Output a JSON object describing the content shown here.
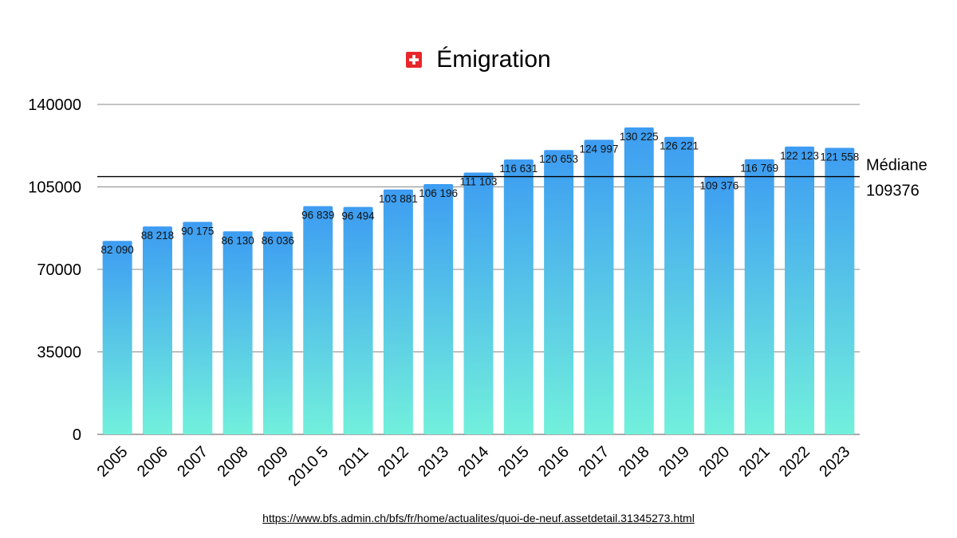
{
  "chart_data": {
    "type": "bar",
    "title": "Émigration",
    "categories": [
      "2005",
      "2006",
      "2007",
      "2008",
      "2009",
      "2010 5",
      "2011",
      "2012",
      "2013",
      "2014",
      "2015",
      "2016",
      "2017",
      "2018",
      "2019",
      "2020",
      "2021",
      "2022",
      "2023"
    ],
    "values": [
      82090,
      88218,
      90175,
      86130,
      86036,
      96839,
      96494,
      103881,
      106196,
      111103,
      116631,
      120653,
      124997,
      130225,
      126221,
      109376,
      116769,
      122123,
      121558
    ],
    "value_labels": [
      "82 090",
      "88 218",
      "90 175",
      "86 130",
      "86 036",
      "96 839",
      "96 494",
      "103 881",
      "106 196",
      "111 103",
      "116 631",
      "120 653",
      "124 997",
      "130 225",
      "126 221",
      "109 376",
      "116 769",
      "122 123",
      "121 558"
    ],
    "ylim": [
      0,
      140000
    ],
    "yticks": [
      0,
      35000,
      70000,
      105000,
      140000
    ],
    "ytick_labels": [
      "0",
      "35000",
      "70000",
      "105000",
      "140000"
    ],
    "xlabel": "",
    "ylabel": "",
    "grid": true,
    "median": {
      "value": 109376,
      "label": "Médiane",
      "value_label": "109376"
    },
    "colors": {
      "bar_top": "#3d9cf2",
      "bar_bottom": "#72f0dc",
      "grid": "#888888",
      "median_line": "#000000"
    }
  },
  "header": {
    "flag_icon": "swiss-flag-icon"
  },
  "footer": {
    "source_url": "https://www.bfs.admin.ch/bfs/fr/home/actualites/quoi-de-neuf.assetdetail.31345273.html"
  }
}
